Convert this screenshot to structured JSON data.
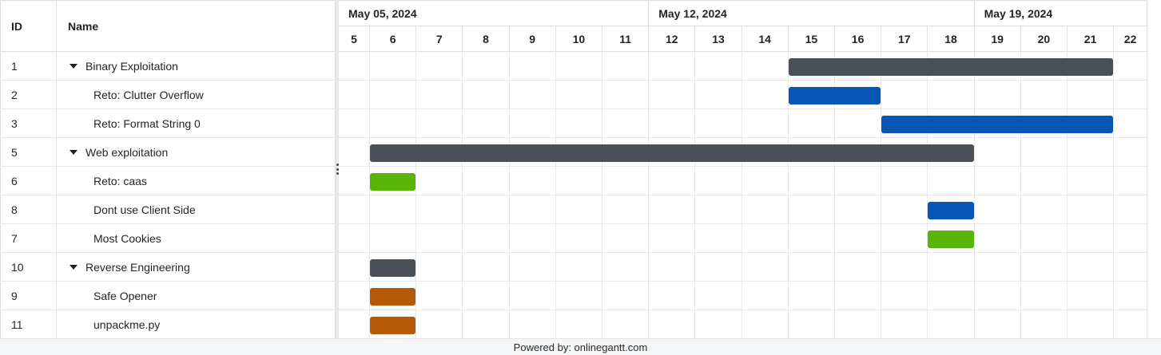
{
  "columns": {
    "id_header": "ID",
    "name_header": "Name"
  },
  "timeline": {
    "weeks": [
      "May 05, 2024",
      "May 12, 2024",
      "May 19, 2024"
    ],
    "days": [
      "5",
      "6",
      "7",
      "8",
      "9",
      "10",
      "11",
      "12",
      "13",
      "14",
      "15",
      "16",
      "17",
      "18",
      "19",
      "20",
      "21",
      "22"
    ]
  },
  "tasks": [
    {
      "id": "1",
      "name": "Binary Exploitation",
      "group": true,
      "start_day": 15,
      "end_day": 21,
      "color": "#4b4f56"
    },
    {
      "id": "2",
      "name": "Reto: Clutter Overflow",
      "group": false,
      "start_day": 15,
      "end_day": 16,
      "color": "#0756b6"
    },
    {
      "id": "3",
      "name": "Reto: Format String 0",
      "group": false,
      "start_day": 17,
      "end_day": 21,
      "color": "#0756b6"
    },
    {
      "id": "5",
      "name": "Web exploitation",
      "group": true,
      "start_day": 6,
      "end_day": 18,
      "color": "#4b4f56"
    },
    {
      "id": "6",
      "name": "Reto: caas",
      "group": false,
      "start_day": 6,
      "end_day": 6,
      "color": "#58b406"
    },
    {
      "id": "8",
      "name": "Dont use Client Side",
      "group": false,
      "start_day": 18,
      "end_day": 18,
      "color": "#0756b6"
    },
    {
      "id": "7",
      "name": "Most Cookies",
      "group": false,
      "start_day": 18,
      "end_day": 18,
      "color": "#58b406"
    },
    {
      "id": "10",
      "name": "Reverse Engineering",
      "group": true,
      "start_day": 6,
      "end_day": 6,
      "color": "#4b4f56"
    },
    {
      "id": "9",
      "name": "Safe Opener",
      "group": false,
      "start_day": 6,
      "end_day": 6,
      "color": "#b45a06"
    },
    {
      "id": "11",
      "name": "unpackme.py",
      "group": false,
      "start_day": 6,
      "end_day": 6,
      "color": "#b45a06"
    }
  ],
  "footer": {
    "text": "Powered by: onlinegantt.com"
  }
}
